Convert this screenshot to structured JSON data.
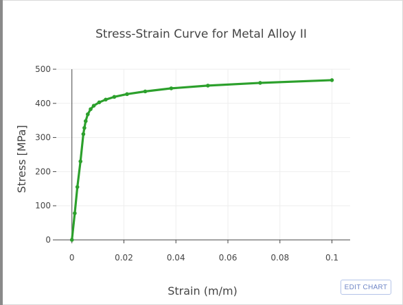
{
  "chart_data": {
    "type": "line",
    "title": "Stress-Strain Curve for Metal Alloy II",
    "xlabel": "Strain (m/m)",
    "ylabel": "Stress [MPa]",
    "xlim": [
      -0.006,
      0.107
    ],
    "ylim": [
      0,
      500
    ],
    "x_ticks": [
      0,
      0.02,
      0.04,
      0.06,
      0.08,
      0.1
    ],
    "x_tick_labels": [
      "0",
      "0.02",
      "0.04",
      "0.06",
      "0.08",
      "0.1"
    ],
    "y_ticks": [
      0,
      100,
      200,
      300,
      400,
      500
    ],
    "y_tick_labels": [
      "0",
      "100",
      "200",
      "300",
      "400",
      "500"
    ],
    "grid": true,
    "legend": "none",
    "series": [
      {
        "color": "#2ca02c",
        "x": [
          0,
          0.0011,
          0.0021,
          0.0033,
          0.0044,
          0.0048,
          0.0053,
          0.0061,
          0.0072,
          0.0084,
          0.0105,
          0.013,
          0.0163,
          0.0212,
          0.0282,
          0.0382,
          0.0523,
          0.0724,
          0.1
        ],
        "y": [
          0,
          78,
          155,
          230,
          310,
          328,
          348,
          368,
          383,
          393,
          403,
          411,
          419,
          427,
          435,
          444,
          452,
          460,
          468
        ]
      }
    ]
  },
  "toolbar": {
    "edit_chart_label": "EDIT CHART"
  }
}
